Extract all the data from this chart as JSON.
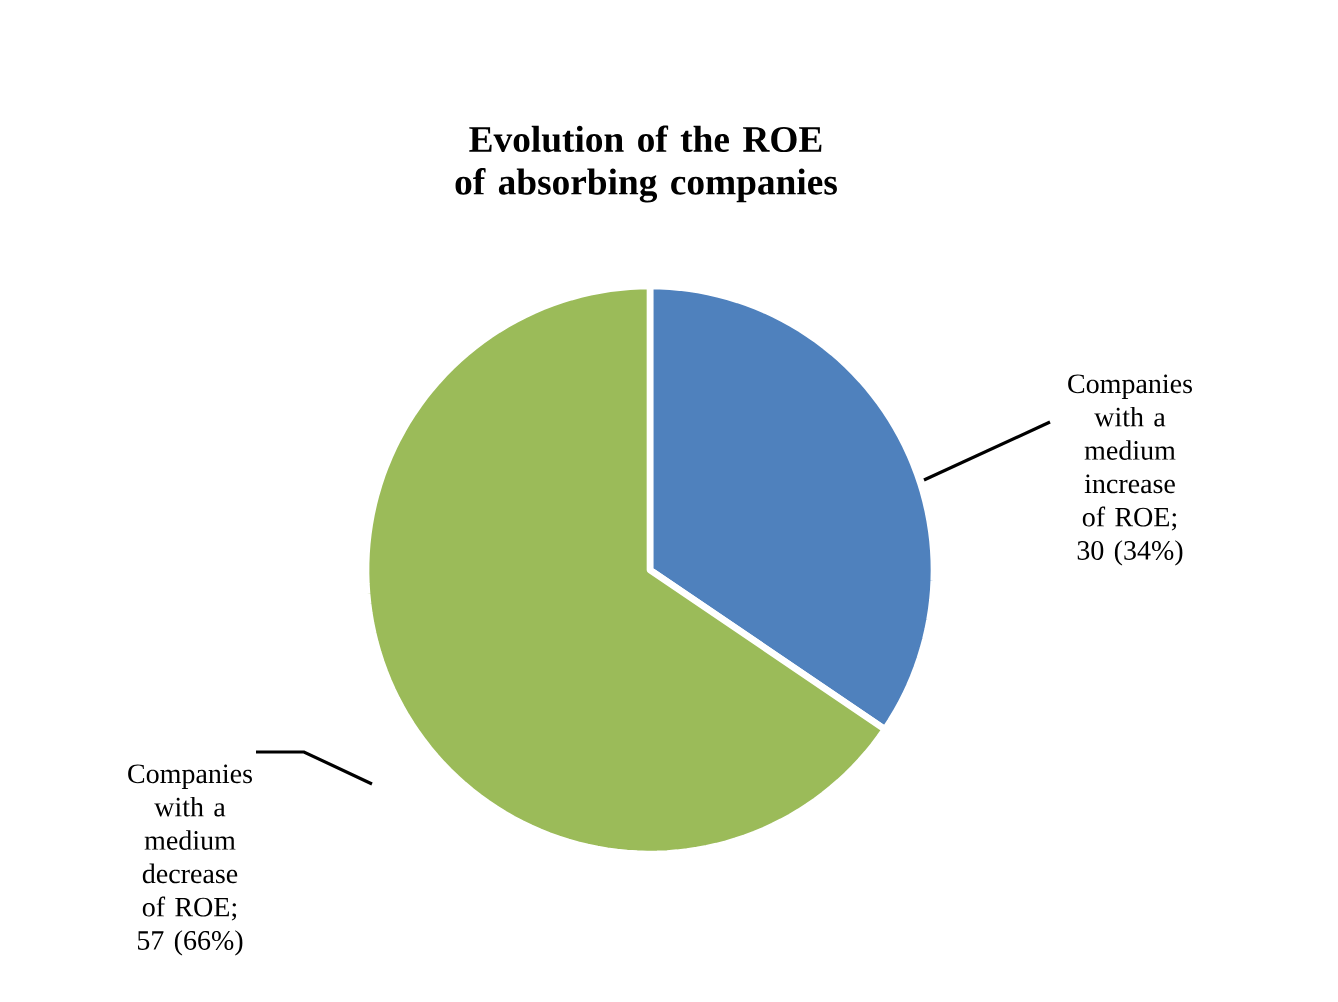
{
  "chart_data": {
    "type": "pie",
    "title": "Evolution of  the ROE of absorbing companies",
    "categories": [
      "Companies with a medium increase of ROE; 30 (34%)",
      "Companies with a medium decrease of ROE; 57 (66%)"
    ],
    "values": [
      30,
      57
    ],
    "colors": [
      "#4f81bd",
      "#9bbb59"
    ]
  }
}
